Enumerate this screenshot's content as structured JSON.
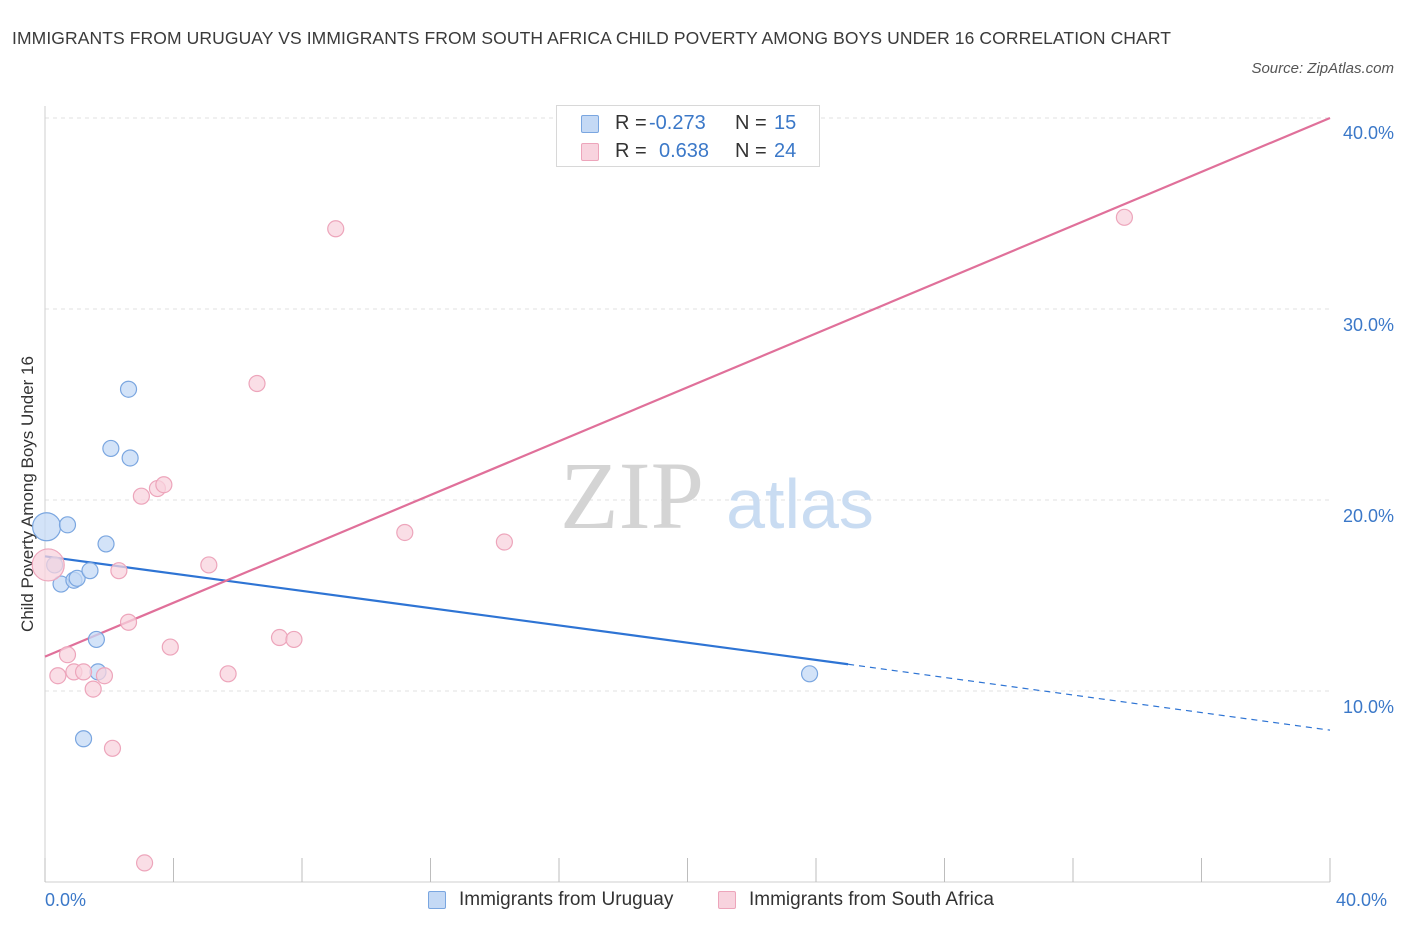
{
  "chart_data": {
    "type": "scatter",
    "title": "IMMIGRANTS FROM URUGUAY VS IMMIGRANTS FROM SOUTH AFRICA CHILD POVERTY AMONG BOYS UNDER 16 CORRELATION CHART",
    "source": "Source: ZipAtlas.com",
    "xlabel": "",
    "ylabel": "Child Poverty Among Boys Under 16",
    "xlim": [
      0,
      40
    ],
    "ylim": [
      0,
      40
    ],
    "x_tick_labels": {
      "min": "0.0%",
      "max": "40.0%"
    },
    "y_tick_labels": [
      "10.0%",
      "20.0%",
      "30.0%",
      "40.0%"
    ],
    "y_ticks": [
      10,
      20,
      30,
      40
    ],
    "watermark": {
      "zip": "ZIP",
      "atlas": "atlas"
    },
    "legend": [
      {
        "r_label": "R =",
        "r_value": "-0.273",
        "n_label": "N =",
        "n_value": "15"
      },
      {
        "r_label": "R =",
        "r_value": "0.638",
        "n_label": "N =",
        "n_value": "24"
      }
    ],
    "series": [
      {
        "name": "Immigrants from Uruguay",
        "color": "#7aa6e0",
        "fill": "#c4d9f5",
        "line_color": "#2e74d4",
        "points": [
          [
            0.05,
            18.6,
            14
          ],
          [
            0.3,
            16.6,
            8
          ],
          [
            0.5,
            15.6,
            8
          ],
          [
            0.7,
            18.7,
            8
          ],
          [
            0.9,
            15.8,
            8
          ],
          [
            1.0,
            15.9,
            8
          ],
          [
            1.4,
            16.3,
            8
          ],
          [
            1.6,
            12.7,
            8
          ],
          [
            1.65,
            11.0,
            8
          ],
          [
            1.2,
            7.5,
            8
          ],
          [
            1.9,
            17.7,
            8
          ],
          [
            2.05,
            22.7,
            8
          ],
          [
            2.6,
            25.8,
            8
          ],
          [
            2.65,
            22.2,
            8
          ],
          [
            23.8,
            10.9,
            8
          ]
        ],
        "trend": {
          "x0": 0,
          "y0": 17.05,
          "x1": 25.0,
          "y1": 11.4,
          "dash_to": 40.0,
          "dash_y": 7.95
        }
      },
      {
        "name": "Immigrants from South Africa",
        "color": "#eda5bb",
        "fill": "#f8d3de",
        "line_color": "#e0709a",
        "points": [
          [
            0.1,
            16.6,
            16
          ],
          [
            0.4,
            10.8,
            8
          ],
          [
            0.7,
            11.9,
            8
          ],
          [
            0.9,
            11.0,
            8
          ],
          [
            1.2,
            11.0,
            8
          ],
          [
            1.5,
            10.1,
            8
          ],
          [
            1.85,
            10.8,
            8
          ],
          [
            2.1,
            7.0,
            8
          ],
          [
            2.3,
            16.3,
            8
          ],
          [
            2.6,
            13.6,
            8
          ],
          [
            3.0,
            20.2,
            8
          ],
          [
            3.1,
            1.0,
            8
          ],
          [
            3.5,
            20.6,
            8
          ],
          [
            3.7,
            20.8,
            8
          ],
          [
            3.9,
            12.3,
            8
          ],
          [
            5.1,
            16.6,
            8
          ],
          [
            5.7,
            10.9,
            8
          ],
          [
            6.6,
            26.1,
            8
          ],
          [
            7.3,
            12.8,
            8
          ],
          [
            7.75,
            12.7,
            8
          ],
          [
            9.05,
            34.2,
            8
          ],
          [
            11.2,
            18.3,
            8
          ],
          [
            14.3,
            17.8,
            8
          ],
          [
            33.6,
            34.8,
            8
          ]
        ],
        "trend": {
          "x0": 0,
          "y0": 11.8,
          "x1": 40.0,
          "y1": 40.0
        }
      }
    ]
  }
}
